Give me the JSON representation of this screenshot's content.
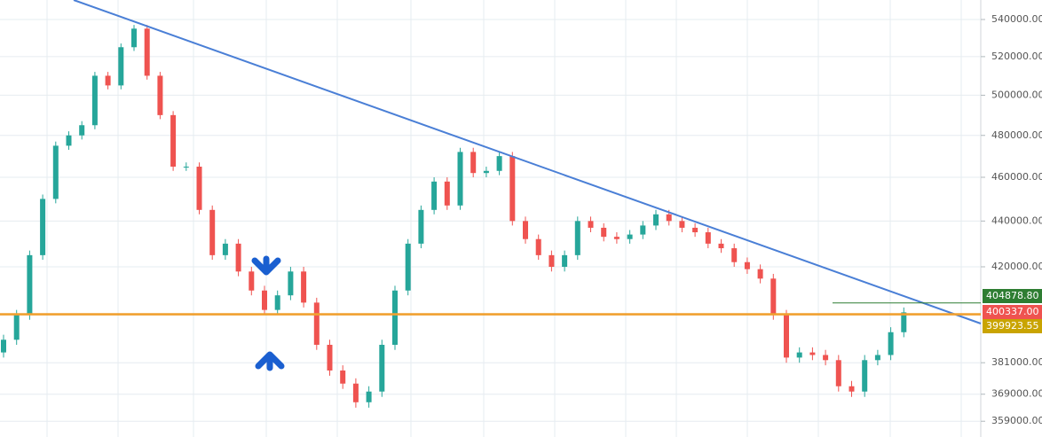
{
  "chart_data": {
    "type": "candlestick",
    "log_scale": true,
    "grid": true,
    "up_color": "#26a69a",
    "down_color": "#ef5350",
    "ylim": [
      353300,
      550800
    ],
    "yticks": [
      {
        "value": 540000,
        "label": "540000.00"
      },
      {
        "value": 520000,
        "label": "520000.00"
      },
      {
        "value": 500000,
        "label": "500000.00"
      },
      {
        "value": 480000,
        "label": "480000.00"
      },
      {
        "value": 460000,
        "label": "460000.00"
      },
      {
        "value": 440000,
        "label": "440000.00"
      },
      {
        "value": 420000,
        "label": "420000.00"
      },
      {
        "value": 381000,
        "label": "381000.00"
      },
      {
        "value": 369000,
        "label": "369000.00"
      },
      {
        "value": 359000,
        "label": "359000.00"
      }
    ],
    "price_labels": [
      {
        "value": 404878.8,
        "label": "404878.80",
        "color": "#2e7d32"
      },
      {
        "value": 400337,
        "label": "400337.00",
        "color": "#ef5350"
      },
      {
        "value": 399923.55,
        "label": "399923.55",
        "color": "#c9a400"
      }
    ],
    "open": [
      385000,
      390000,
      400000,
      425000,
      450000,
      475000,
      480000,
      485000,
      510000,
      505000,
      525000,
      535000,
      510000,
      490000,
      465000,
      465000,
      445000,
      425000,
      430000,
      418000,
      410000,
      402000,
      408000,
      418000,
      405000,
      388000,
      378000,
      373000,
      366000,
      370000,
      388000,
      410000,
      430000,
      445000,
      458000,
      447000,
      472000,
      462000,
      463000,
      470000,
      440000,
      432000,
      425000,
      420000,
      425000,
      440000,
      437000,
      433000,
      432000,
      434000,
      438000,
      443000,
      440000,
      437000,
      435000,
      430000,
      428000,
      422000,
      419000,
      415000,
      400000,
      383000,
      385000,
      384000,
      382000,
      372000,
      370000,
      382000,
      384000,
      393000
    ],
    "high": [
      392000,
      402000,
      427000,
      452000,
      477000,
      482000,
      487000,
      512000,
      512000,
      527000,
      537000,
      537000,
      512000,
      492000,
      467000,
      467000,
      447000,
      432000,
      432000,
      420000,
      412000,
      410000,
      420000,
      420000,
      407000,
      390000,
      380000,
      375000,
      372000,
      390000,
      412000,
      432000,
      447000,
      460000,
      460000,
      474000,
      474000,
      465000,
      472000,
      472000,
      442000,
      434000,
      427000,
      427000,
      442000,
      442000,
      439000,
      435000,
      436000,
      440000,
      445000,
      445000,
      442000,
      439000,
      437000,
      432000,
      430000,
      424000,
      421000,
      417000,
      402000,
      387000,
      387000,
      386000,
      384000,
      374000,
      384000,
      386000,
      395000,
      403000
    ],
    "low": [
      383000,
      388000,
      398000,
      423000,
      448000,
      473000,
      478000,
      483000,
      503000,
      503000,
      523000,
      508000,
      488000,
      463000,
      463000,
      443000,
      423000,
      423000,
      416000,
      408000,
      400000,
      400000,
      406000,
      403000,
      386000,
      376000,
      371000,
      364000,
      364000,
      368000,
      386000,
      408000,
      428000,
      443000,
      445000,
      445000,
      460000,
      460000,
      461000,
      438000,
      430000,
      423000,
      418000,
      418000,
      423000,
      435000,
      431000,
      430000,
      430000,
      432000,
      436000,
      438000,
      435000,
      433000,
      428000,
      426000,
      420000,
      417000,
      413000,
      398000,
      381000,
      381000,
      382000,
      380000,
      370000,
      368000,
      368000,
      380000,
      382000,
      391000
    ],
    "close": [
      390000,
      400000,
      425000,
      450000,
      475000,
      480000,
      485000,
      510000,
      505000,
      525000,
      535000,
      510000,
      490000,
      465000,
      465000,
      445000,
      425000,
      430000,
      418000,
      410000,
      402000,
      408000,
      418000,
      405000,
      388000,
      378000,
      373000,
      366000,
      370000,
      388000,
      410000,
      430000,
      445000,
      458000,
      447000,
      472000,
      462000,
      463000,
      470000,
      440000,
      432000,
      425000,
      420000,
      425000,
      440000,
      437000,
      433000,
      432000,
      434000,
      438000,
      443000,
      440000,
      437000,
      435000,
      430000,
      428000,
      422000,
      419000,
      415000,
      400000,
      383000,
      385000,
      384000,
      382000,
      372000,
      370000,
      382000,
      384000,
      393000,
      401000
    ]
  }
}
